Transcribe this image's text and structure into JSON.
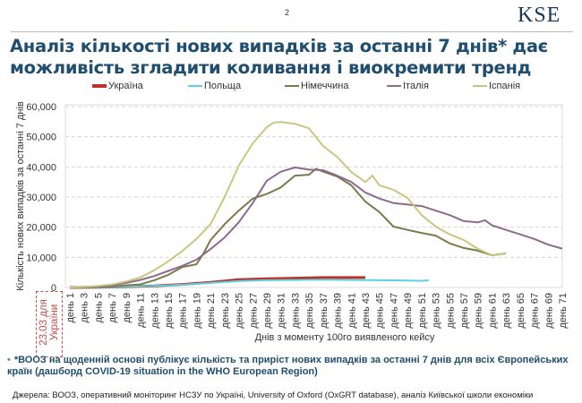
{
  "header": {
    "page_number": "2",
    "logo": "KSE"
  },
  "title": "Аналіз кількості нових випадків за останні 7 днів* дає можливість згладити коливання і виокремити тренд",
  "annotation": "23.03 для України",
  "note": "*ВООЗ на щоденній основі публікує кількість та приріст нових випадків за останні 7 днів для всіх Європейських країн (дашборд COVID-19 situation in the WHO European Region)",
  "source": "Джерела: ВООЗ, оперативний моніторинг НСЗУ по Україні, University of Oxford (OxGRT database), аналіз Київської школи економіки",
  "chart_data": {
    "type": "line",
    "xlabel": "Днів з моменту 100го виявленого кейсу",
    "ylabel": "Кількість нових випадків за останні 7 днів",
    "ylim": [
      0,
      60000
    ],
    "xlim": [
      1,
      71
    ],
    "yticks": [
      "0",
      "10,000",
      "20,000",
      "30,000",
      "40,000",
      "50,000",
      "60,000"
    ],
    "xticks": [
      "день 1",
      "день 3",
      "день 5",
      "день 7",
      "день 9",
      "день 11",
      "день 13",
      "день 15",
      "день 17",
      "день 19",
      "день 21",
      "день 23",
      "день 25",
      "день 27",
      "день 29",
      "день 31",
      "день 33",
      "день 35",
      "день 37",
      "день 39",
      "день 41",
      "день 43",
      "день 45",
      "день 47",
      "день 49",
      "день 51",
      "день 53",
      "день 55",
      "день 57",
      "день 59",
      "день 61",
      "день 63",
      "день 65",
      "день 67",
      "день 69",
      "день 71"
    ],
    "grid": "horizontal dashed",
    "legend": "top",
    "series": [
      {
        "name": "Україна",
        "color": "#c0302a",
        "points": [
          [
            1,
            0
          ],
          [
            5,
            50
          ],
          [
            9,
            200
          ],
          [
            13,
            500
          ],
          [
            17,
            1000
          ],
          [
            21,
            1700
          ],
          [
            25,
            2600
          ],
          [
            29,
            2900
          ],
          [
            33,
            3100
          ],
          [
            37,
            3300
          ],
          [
            41,
            3300
          ],
          [
            43,
            3300
          ]
        ]
      },
      {
        "name": "Польща",
        "color": "#5ad2e0",
        "points": [
          [
            1,
            0
          ],
          [
            5,
            50
          ],
          [
            9,
            200
          ],
          [
            13,
            500
          ],
          [
            17,
            900
          ],
          [
            21,
            1500
          ],
          [
            25,
            2100
          ],
          [
            29,
            2400
          ],
          [
            33,
            2500
          ],
          [
            37,
            2600
          ],
          [
            41,
            2500
          ],
          [
            45,
            2400
          ],
          [
            49,
            2300
          ],
          [
            51,
            2200
          ],
          [
            52,
            2400
          ]
        ]
      },
      {
        "name": "Німеччина",
        "color": "#7b7a4a",
        "points": [
          [
            1,
            0
          ],
          [
            3,
            100
          ],
          [
            5,
            200
          ],
          [
            7,
            400
          ],
          [
            9,
            700
          ],
          [
            11,
            1000
          ],
          [
            13,
            2400
          ],
          [
            15,
            4200
          ],
          [
            17,
            6800
          ],
          [
            19,
            7700
          ],
          [
            20,
            11300
          ],
          [
            21,
            15700
          ],
          [
            23,
            21000
          ],
          [
            25,
            25500
          ],
          [
            27,
            29500
          ],
          [
            29,
            31000
          ],
          [
            31,
            33200
          ],
          [
            33,
            37100
          ],
          [
            35,
            37400
          ],
          [
            36,
            39400
          ],
          [
            37,
            38400
          ],
          [
            39,
            36800
          ],
          [
            41,
            33900
          ],
          [
            43,
            28500
          ],
          [
            45,
            25000
          ],
          [
            47,
            20200
          ],
          [
            49,
            19100
          ],
          [
            51,
            18100
          ],
          [
            53,
            17200
          ],
          [
            55,
            14600
          ],
          [
            57,
            13100
          ],
          [
            59,
            12200
          ],
          [
            61,
            10700
          ],
          [
            63,
            11300
          ]
        ]
      },
      {
        "name": "Італія",
        "color": "#8e6a8e",
        "points": [
          [
            1,
            0
          ],
          [
            3,
            200
          ],
          [
            5,
            400
          ],
          [
            7,
            800
          ],
          [
            9,
            1500
          ],
          [
            11,
            2500
          ],
          [
            13,
            3800
          ],
          [
            15,
            5500
          ],
          [
            17,
            7200
          ],
          [
            19,
            9200
          ],
          [
            21,
            12700
          ],
          [
            23,
            16600
          ],
          [
            25,
            21600
          ],
          [
            27,
            28000
          ],
          [
            29,
            35400
          ],
          [
            31,
            38400
          ],
          [
            33,
            39800
          ],
          [
            35,
            39100
          ],
          [
            37,
            38900
          ],
          [
            39,
            37100
          ],
          [
            41,
            35000
          ],
          [
            43,
            31500
          ],
          [
            45,
            29500
          ],
          [
            47,
            28000
          ],
          [
            49,
            27500
          ],
          [
            51,
            27000
          ],
          [
            53,
            25500
          ],
          [
            55,
            24000
          ],
          [
            57,
            22000
          ],
          [
            59,
            21600
          ],
          [
            60,
            22300
          ],
          [
            61,
            20600
          ],
          [
            63,
            19100
          ],
          [
            65,
            17600
          ],
          [
            67,
            16100
          ],
          [
            69,
            14200
          ],
          [
            71,
            12900
          ]
        ]
      },
      {
        "name": "Іспанія",
        "color": "#c9c77f",
        "points": [
          [
            1,
            0
          ],
          [
            3,
            200
          ],
          [
            5,
            500
          ],
          [
            7,
            1000
          ],
          [
            9,
            2000
          ],
          [
            11,
            3300
          ],
          [
            13,
            5700
          ],
          [
            15,
            8700
          ],
          [
            17,
            12100
          ],
          [
            19,
            16100
          ],
          [
            21,
            21000
          ],
          [
            23,
            30000
          ],
          [
            25,
            40400
          ],
          [
            27,
            47800
          ],
          [
            29,
            53200
          ],
          [
            30,
            54700
          ],
          [
            31,
            54900
          ],
          [
            33,
            54300
          ],
          [
            35,
            52800
          ],
          [
            37,
            46900
          ],
          [
            39,
            43300
          ],
          [
            41,
            38300
          ],
          [
            43,
            35000
          ],
          [
            44,
            37100
          ],
          [
            45,
            33900
          ],
          [
            47,
            32400
          ],
          [
            49,
            29700
          ],
          [
            51,
            24000
          ],
          [
            53,
            20200
          ],
          [
            55,
            17600
          ],
          [
            57,
            15700
          ],
          [
            59,
            12800
          ],
          [
            61,
            10700
          ],
          [
            63,
            11200
          ]
        ]
      }
    ]
  }
}
